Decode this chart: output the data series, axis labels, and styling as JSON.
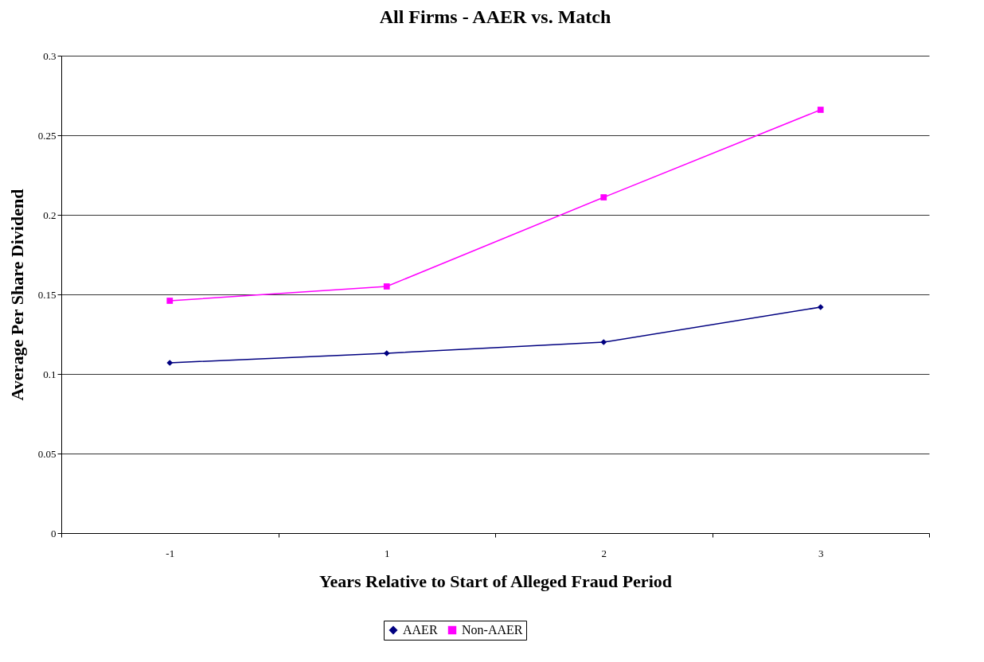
{
  "chart_data": {
    "type": "line",
    "title": "All Firms - AAER vs. Match",
    "xlabel": "Years Relative to Start of Alleged Fraud Period",
    "ylabel": "Average Per Share Dividend",
    "categories": [
      "-1",
      "1",
      "2",
      "3"
    ],
    "series": [
      {
        "name": "AAER",
        "color": "#000080",
        "marker": "diamond",
        "values": [
          0.107,
          0.113,
          0.12,
          0.142
        ]
      },
      {
        "name": "Non-AAER",
        "color": "#ff00ff",
        "marker": "square",
        "values": [
          0.146,
          0.155,
          0.211,
          0.266
        ]
      }
    ],
    "ylim": [
      0,
      0.3
    ],
    "yticks": [
      0,
      0.05,
      0.1,
      0.15,
      0.2,
      0.25,
      0.3
    ],
    "grid": "y",
    "legend": "bottom",
    "line_style": "solid"
  }
}
